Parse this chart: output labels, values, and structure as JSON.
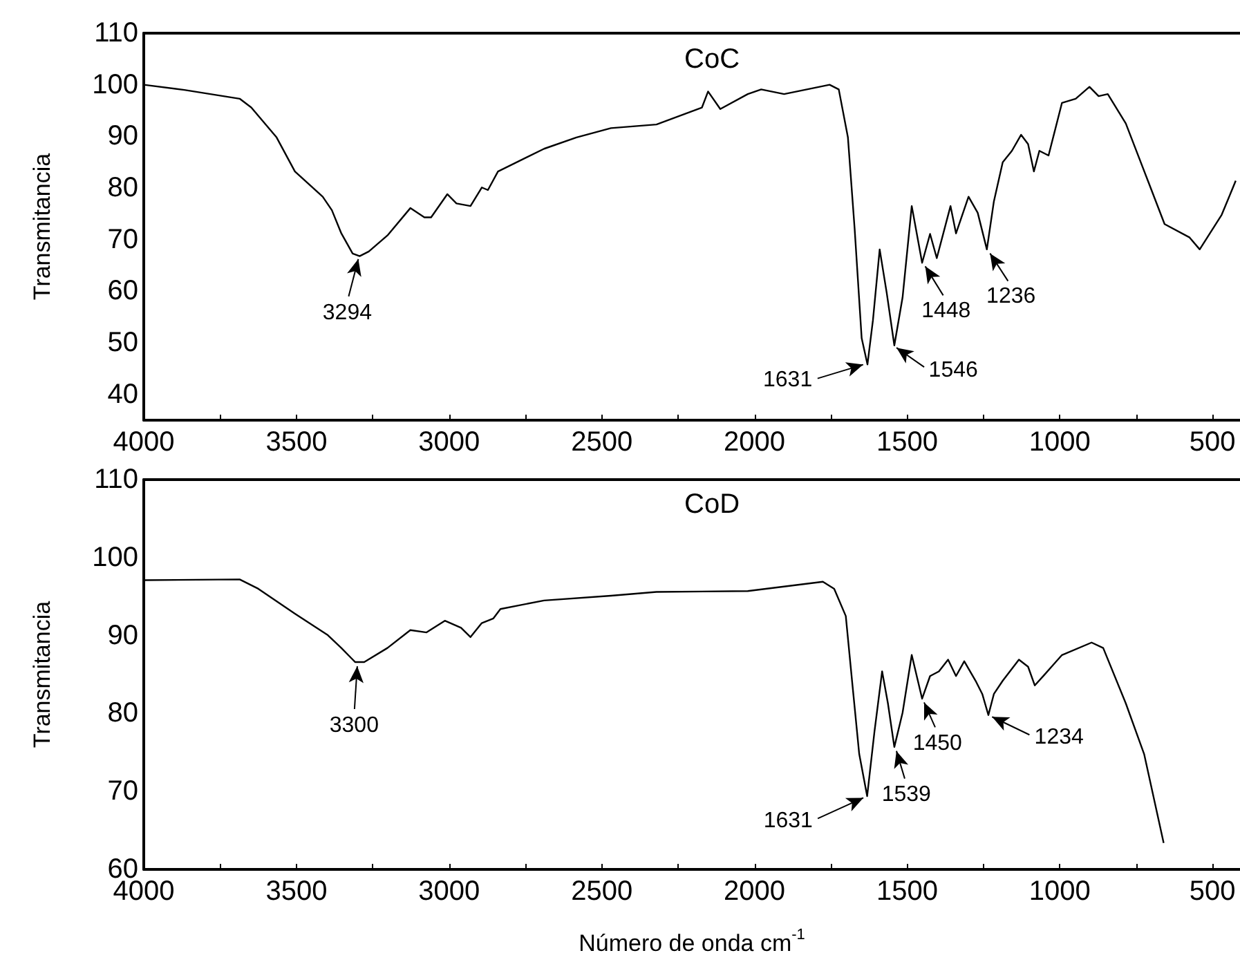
{
  "chart_data": [
    {
      "type": "line",
      "title": "CoC",
      "ylabel": "Transmitancia",
      "color": "#000000",
      "x": [
        4000,
        3867,
        3686,
        3648,
        3565,
        3505,
        3414,
        3384,
        3353,
        3316,
        3293,
        3263,
        3202,
        3127,
        3081,
        3059,
        3006,
        2976,
        2930,
        2893,
        2873,
        2840,
        2689,
        2583,
        2470,
        2321,
        2172,
        2152,
        2112,
        2022,
        1978,
        1903,
        1754,
        1724,
        1694,
        1672,
        1649,
        1630,
        1612,
        1590,
        1567,
        1542,
        1515,
        1485,
        1451,
        1425,
        1403,
        1358,
        1340,
        1299,
        1269,
        1239,
        1216,
        1187,
        1157,
        1127,
        1104,
        1085,
        1067,
        1037,
        993,
        948,
        903,
        873,
        843,
        784,
        709,
        657,
        575,
        542,
        470,
        433,
        424
      ],
      "values": [
        100,
        99,
        97.3,
        95.6,
        89.8,
        83.2,
        78.3,
        75.7,
        71.2,
        67.3,
        66.8,
        67.7,
        70.8,
        76.1,
        74.3,
        74.3,
        78.8,
        77,
        76.5,
        80.1,
        79.6,
        83.2,
        87.6,
        89.8,
        91.6,
        92.3,
        95.6,
        98.7,
        95.3,
        98.2,
        99.1,
        98.2,
        100,
        99.1,
        89.8,
        72.1,
        50.9,
        45.8,
        54.4,
        68.1,
        59.7,
        49.5,
        58.8,
        76.5,
        65.5,
        71.1,
        66.4,
        76.5,
        71.2,
        78.3,
        75.2,
        68.1,
        77.4,
        85,
        87.2,
        90.3,
        88.5,
        83.2,
        87.2,
        86.3,
        96.5,
        97.3,
        99.6,
        97.8,
        98.2,
        92.5,
        81,
        73,
        70.4,
        68.1,
        74.8,
        80.1,
        81.4
      ],
      "xlim": [
        4000,
        410
      ],
      "ylim": [
        35,
        110
      ],
      "xticks": [
        4000,
        {
          "value": 3750,
          "label": null
        },
        3500,
        {
          "value": 3250,
          "label": null
        },
        3000,
        {
          "value": 2750,
          "label": null
        },
        2500,
        {
          "value": 2250,
          "label": null
        },
        2000,
        {
          "value": 1750,
          "label": null
        },
        1500,
        {
          "value": 1250,
          "label": null
        },
        1000,
        {
          "value": 750,
          "label": null
        },
        500
      ],
      "yticks": [
        40,
        50,
        60,
        70,
        80,
        90,
        100,
        110
      ],
      "annotations": [
        {
          "text": "3294",
          "x": 3294,
          "y": 67
        },
        {
          "text": "1631",
          "x": 1631,
          "y": 46
        },
        {
          "text": "1546",
          "x": 1546,
          "y": 49.5
        },
        {
          "text": "1448",
          "x": 1448,
          "y": 65.5
        },
        {
          "text": "1236",
          "x": 1236,
          "y": 68
        }
      ]
    },
    {
      "type": "line",
      "title": "CoD",
      "ylabel": "Transmitancia",
      "xlabel": "Número de onda cm$^{-1}$",
      "color": "#000000",
      "x": [
        4000,
        3686,
        3625,
        3505,
        3399,
        3353,
        3308,
        3278,
        3202,
        3127,
        3074,
        3014,
        2961,
        2930,
        2893,
        2855,
        2832,
        2689,
        2470,
        2321,
        2022,
        1776,
        1739,
        1701,
        1679,
        1657,
        1631,
        1607,
        1582,
        1563,
        1542,
        1515,
        1485,
        1451,
        1425,
        1396,
        1366,
        1340,
        1313,
        1276,
        1254,
        1234,
        1216,
        1187,
        1134,
        1104,
        1082,
        1052,
        993,
        896,
        858,
        784,
        724,
        660
      ],
      "values": [
        97.1,
        97.2,
        96,
        92.8,
        90.1,
        88.4,
        86.6,
        86.6,
        88.4,
        90.7,
        90.4,
        91.9,
        91,
        89.8,
        91.6,
        92.2,
        93.4,
        94.5,
        95.1,
        95.6,
        95.7,
        96.9,
        96,
        92.5,
        83.6,
        74.8,
        69.4,
        77.7,
        85.4,
        81.3,
        75.7,
        80.1,
        87.5,
        81.9,
        84.8,
        85.4,
        86.9,
        84.8,
        86.7,
        84.2,
        82.5,
        79.8,
        82.5,
        84.2,
        86.9,
        86,
        83.6,
        84.9,
        87.5,
        89.1,
        88.4,
        81.3,
        74.8,
        63.4
      ],
      "xlim": [
        4000,
        410
      ],
      "ylim": [
        60,
        110
      ],
      "xticks": [
        4000,
        {
          "value": 3750,
          "label": null
        },
        3500,
        {
          "value": 3250,
          "label": null
        },
        3000,
        {
          "value": 2750,
          "label": null
        },
        2500,
        {
          "value": 2250,
          "label": null
        },
        2000,
        {
          "value": 1750,
          "label": null
        },
        1500,
        {
          "value": 1250,
          "label": null
        },
        1000,
        {
          "value": 750,
          "label": null
        },
        500
      ],
      "yticks": [
        60,
        70,
        80,
        90,
        100,
        110
      ],
      "annotations": [
        {
          "text": "3300",
          "x": 3300,
          "y": 86.6
        },
        {
          "text": "1631",
          "x": 1631,
          "y": 69.4
        },
        {
          "text": "1539",
          "x": 1539,
          "y": 75.7
        },
        {
          "text": "1450",
          "x": 1450,
          "y": 81.9
        },
        {
          "text": "1234",
          "x": 1234,
          "y": 79.8
        }
      ]
    }
  ]
}
